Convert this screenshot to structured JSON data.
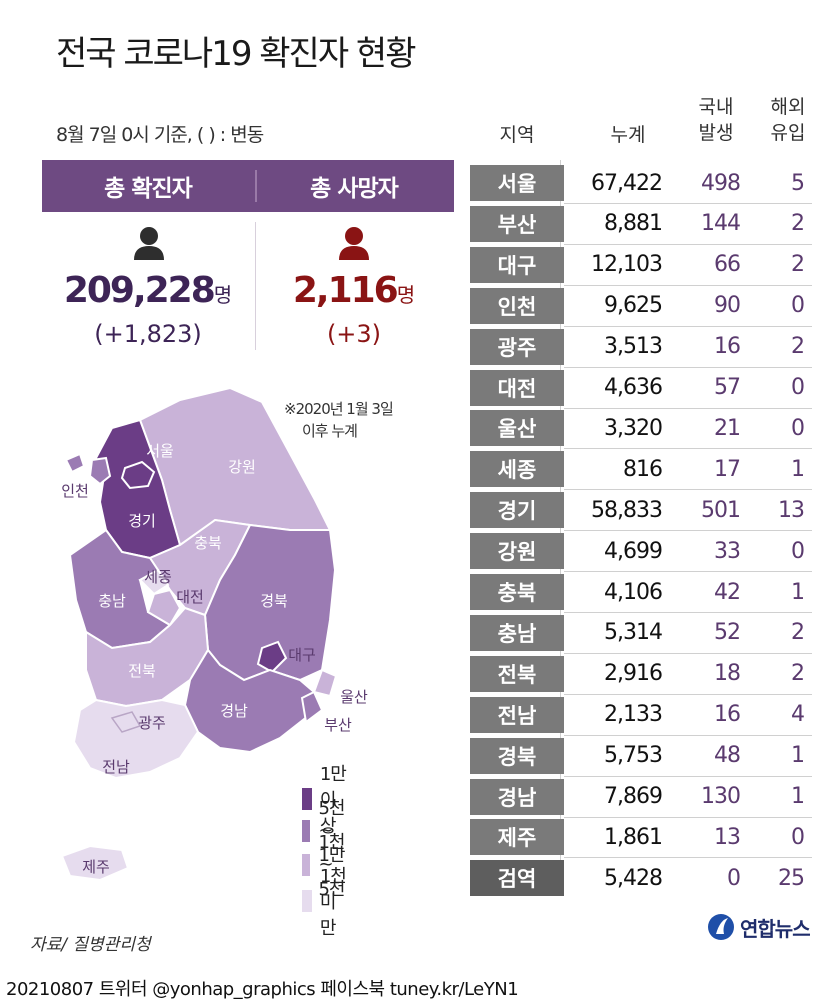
{
  "title": "전국 코로나19 확진자 현황",
  "basis_note": "8월 7일 0시 기준, ( ) : 변동",
  "summary": {
    "confirmed_label": "총 확진자",
    "confirmed_value": "209,228",
    "confirmed_unit": "명",
    "confirmed_change": "(+1,823)",
    "deaths_label": "총 사망자",
    "deaths_value": "2,116",
    "deaths_unit": "명",
    "deaths_change": "(+3)"
  },
  "cumulative_note": [
    "※2020년 1월 3일",
    "이후 누계"
  ],
  "map_labels": {
    "seoul": "서울",
    "incheon": "인천",
    "gyeonggi": "경기",
    "gangwon": "강원",
    "chungbuk": "충북",
    "sejong": "세종",
    "daejeon": "대전",
    "chungnam": "충남",
    "gyeongbuk": "경북",
    "daegu": "대구",
    "jeonbuk": "전북",
    "gwangju": "광주",
    "jeonnam": "전남",
    "gyeongnam": "경남",
    "ulsan": "울산",
    "busan": "부산",
    "jeju": "제주"
  },
  "legend": [
    {
      "label": "1만 이상",
      "color": "#6b3d86"
    },
    {
      "label": "5천 ~ 1만",
      "color": "#9b7bb3"
    },
    {
      "label": "1천 ~ 5천",
      "color": "#c9b3d8"
    },
    {
      "label": "1천 미만",
      "color": "#e6dcee"
    }
  ],
  "table_headers": {
    "region": "지역",
    "cumulative": "누계",
    "domestic": [
      "국내",
      "발생"
    ],
    "overseas": [
      "해외",
      "유입"
    ]
  },
  "chart_data": {
    "type": "table",
    "columns": [
      "지역",
      "누계",
      "국내 발생",
      "해외 유입"
    ],
    "rows": [
      [
        "서울",
        "67,422",
        "498",
        "5"
      ],
      [
        "부산",
        "8,881",
        "144",
        "2"
      ],
      [
        "대구",
        "12,103",
        "66",
        "2"
      ],
      [
        "인천",
        "9,625",
        "90",
        "0"
      ],
      [
        "광주",
        "3,513",
        "16",
        "2"
      ],
      [
        "대전",
        "4,636",
        "57",
        "0"
      ],
      [
        "울산",
        "3,320",
        "21",
        "0"
      ],
      [
        "세종",
        "816",
        "17",
        "1"
      ],
      [
        "경기",
        "58,833",
        "501",
        "13"
      ],
      [
        "강원",
        "4,699",
        "33",
        "0"
      ],
      [
        "충북",
        "4,106",
        "42",
        "1"
      ],
      [
        "충남",
        "5,314",
        "52",
        "2"
      ],
      [
        "전북",
        "2,916",
        "18",
        "2"
      ],
      [
        "전남",
        "2,133",
        "16",
        "4"
      ],
      [
        "경북",
        "5,753",
        "48",
        "1"
      ],
      [
        "경남",
        "7,869",
        "130",
        "1"
      ],
      [
        "제주",
        "1,861",
        "13",
        "0"
      ],
      [
        "검역",
        "5,428",
        "0",
        "25"
      ]
    ]
  },
  "source": "자료/ 질병관리청",
  "logo": "연합뉴스",
  "footer": "20210807 트위터 @yonhap_graphics  페이스북 tuney.kr/LeYN1",
  "colors": {
    "header_purple": "#6e4a82",
    "confirmed_text": "#3d2456",
    "deaths_text": "#8a1414",
    "region_cell_gray": "#7a7a7a"
  }
}
